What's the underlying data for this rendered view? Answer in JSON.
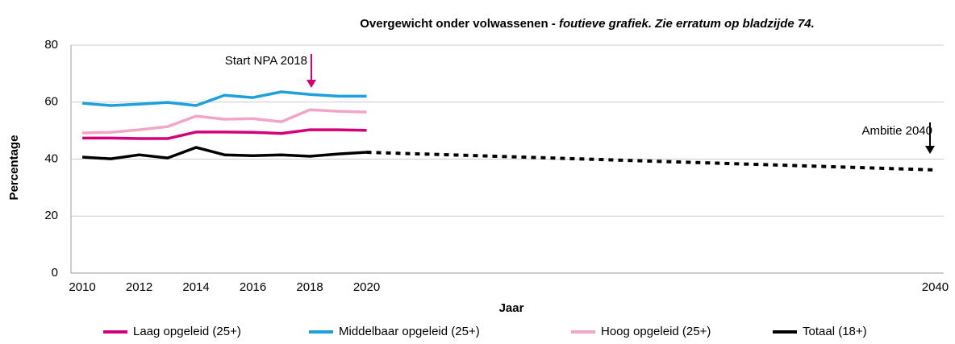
{
  "chart_data": {
    "type": "line",
    "title": "Overgewicht onder volwassenen - ",
    "title_note": "foutieve grafiek. Zie erratum op bladzijde 74.",
    "xlabel": "Jaar",
    "ylabel": "Percentage",
    "x": [
      2010,
      2011,
      2012,
      2013,
      2014,
      2015,
      2016,
      2017,
      2018,
      2019,
      2020
    ],
    "series": [
      {
        "name": "Laag opgeleid (25+)",
        "color": "#d4007a",
        "values": [
          47.4,
          47.4,
          47.2,
          47.2,
          49.5,
          49.5,
          49.4,
          49.0,
          50.3,
          50.3,
          50.1
        ]
      },
      {
        "name": "Middelbaar opgeleid (25+)",
        "color": "#1ea0dc",
        "values": [
          59.6,
          58.8,
          59.3,
          59.9,
          58.8,
          62.4,
          61.6,
          63.6,
          62.7,
          62.1,
          62.1
        ]
      },
      {
        "name": "Hoog opgeleid (25+)",
        "color": "#f3a5c8",
        "values": [
          49.2,
          49.4,
          50.3,
          51.4,
          55.1,
          54.0,
          54.2,
          53.1,
          57.3,
          56.8,
          56.5
        ]
      },
      {
        "name": "Totaal (18+)",
        "color": "#000000",
        "values": [
          40.7,
          40.1,
          41.5,
          40.4,
          44.1,
          41.5,
          41.2,
          41.5,
          41.0,
          41.8,
          42.4
        ]
      }
    ],
    "projection": {
      "x": [
        2020,
        2040
      ],
      "values": [
        42.4,
        36.2
      ],
      "color": "#000000"
    },
    "annotations": [
      {
        "text": "Start NPA 2018",
        "color": "#d4007a"
      },
      {
        "text": "Ambitie 2040",
        "color": "#000000"
      }
    ],
    "xlim": [
      2009.6,
      2040.3
    ],
    "xticks": [
      2010,
      2012,
      2014,
      2016,
      2018,
      2020,
      2040
    ],
    "ylim": [
      0,
      80
    ],
    "yticks": [
      0,
      20,
      40,
      60,
      80
    ],
    "grid": true,
    "legend": "bottom"
  }
}
